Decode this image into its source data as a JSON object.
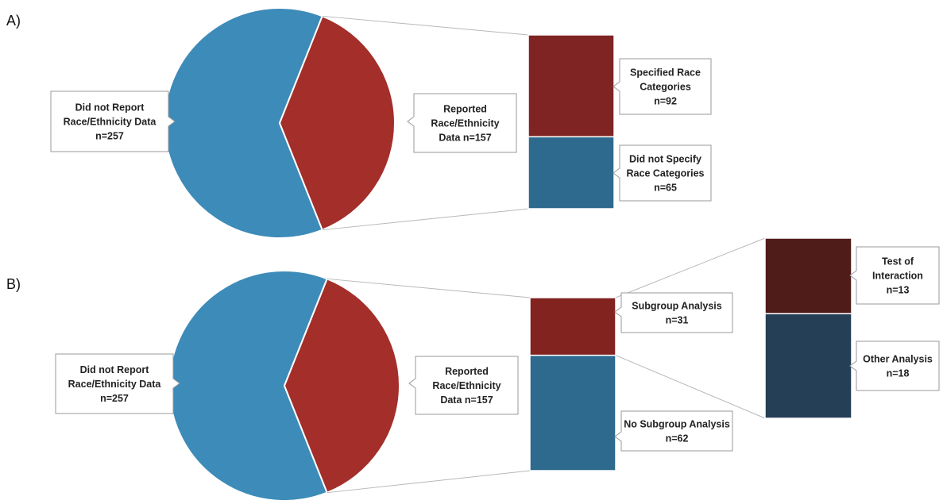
{
  "colors": {
    "not_reported": "#3D8BB8",
    "reported": "#A32E2A",
    "specified": "#7F2422",
    "not_specified": "#2E6A8E",
    "subgroup": "#822320",
    "no_subgroup": "#2E6A8E",
    "interaction": "#4F1C1A",
    "other": "#243F56"
  },
  "chart_data": [
    {
      "panel": "A)",
      "type": "bar-of-pie",
      "pie": [
        {
          "label": [
            "Did not Report",
            "Race/Ethnicity Data",
            "n=257"
          ],
          "value": 257
        },
        {
          "label": [
            "Reported",
            "Race/Ethnicity",
            "Data n=157"
          ],
          "value": 157
        }
      ],
      "breakdown": [
        {
          "label": [
            "Specified Race",
            "Categories",
            "n=92"
          ],
          "value": 92
        },
        {
          "label": [
            "Did not Specify",
            "Race Categories",
            "n=65"
          ],
          "value": 65
        }
      ]
    },
    {
      "panel": "B)",
      "type": "bar-of-pie",
      "pie": [
        {
          "label": [
            "Did not Report",
            "Race/Ethnicity Data",
            "n=257"
          ],
          "value": 257
        },
        {
          "label": [
            "Reported",
            "Race/Ethnicity",
            "Data n=157"
          ],
          "value": 157
        }
      ],
      "breakdown": [
        {
          "label": [
            "Subgroup Analysis",
            "n=31"
          ],
          "value": 31
        },
        {
          "label": [
            "No Subgroup Analysis",
            "n=62"
          ],
          "value": 62
        }
      ],
      "sub_breakdown": [
        {
          "label": [
            "Test of",
            "Interaction",
            "n=13"
          ],
          "value": 13
        },
        {
          "label": [
            "Other Analysis",
            "n=18"
          ],
          "value": 18
        }
      ]
    }
  ]
}
